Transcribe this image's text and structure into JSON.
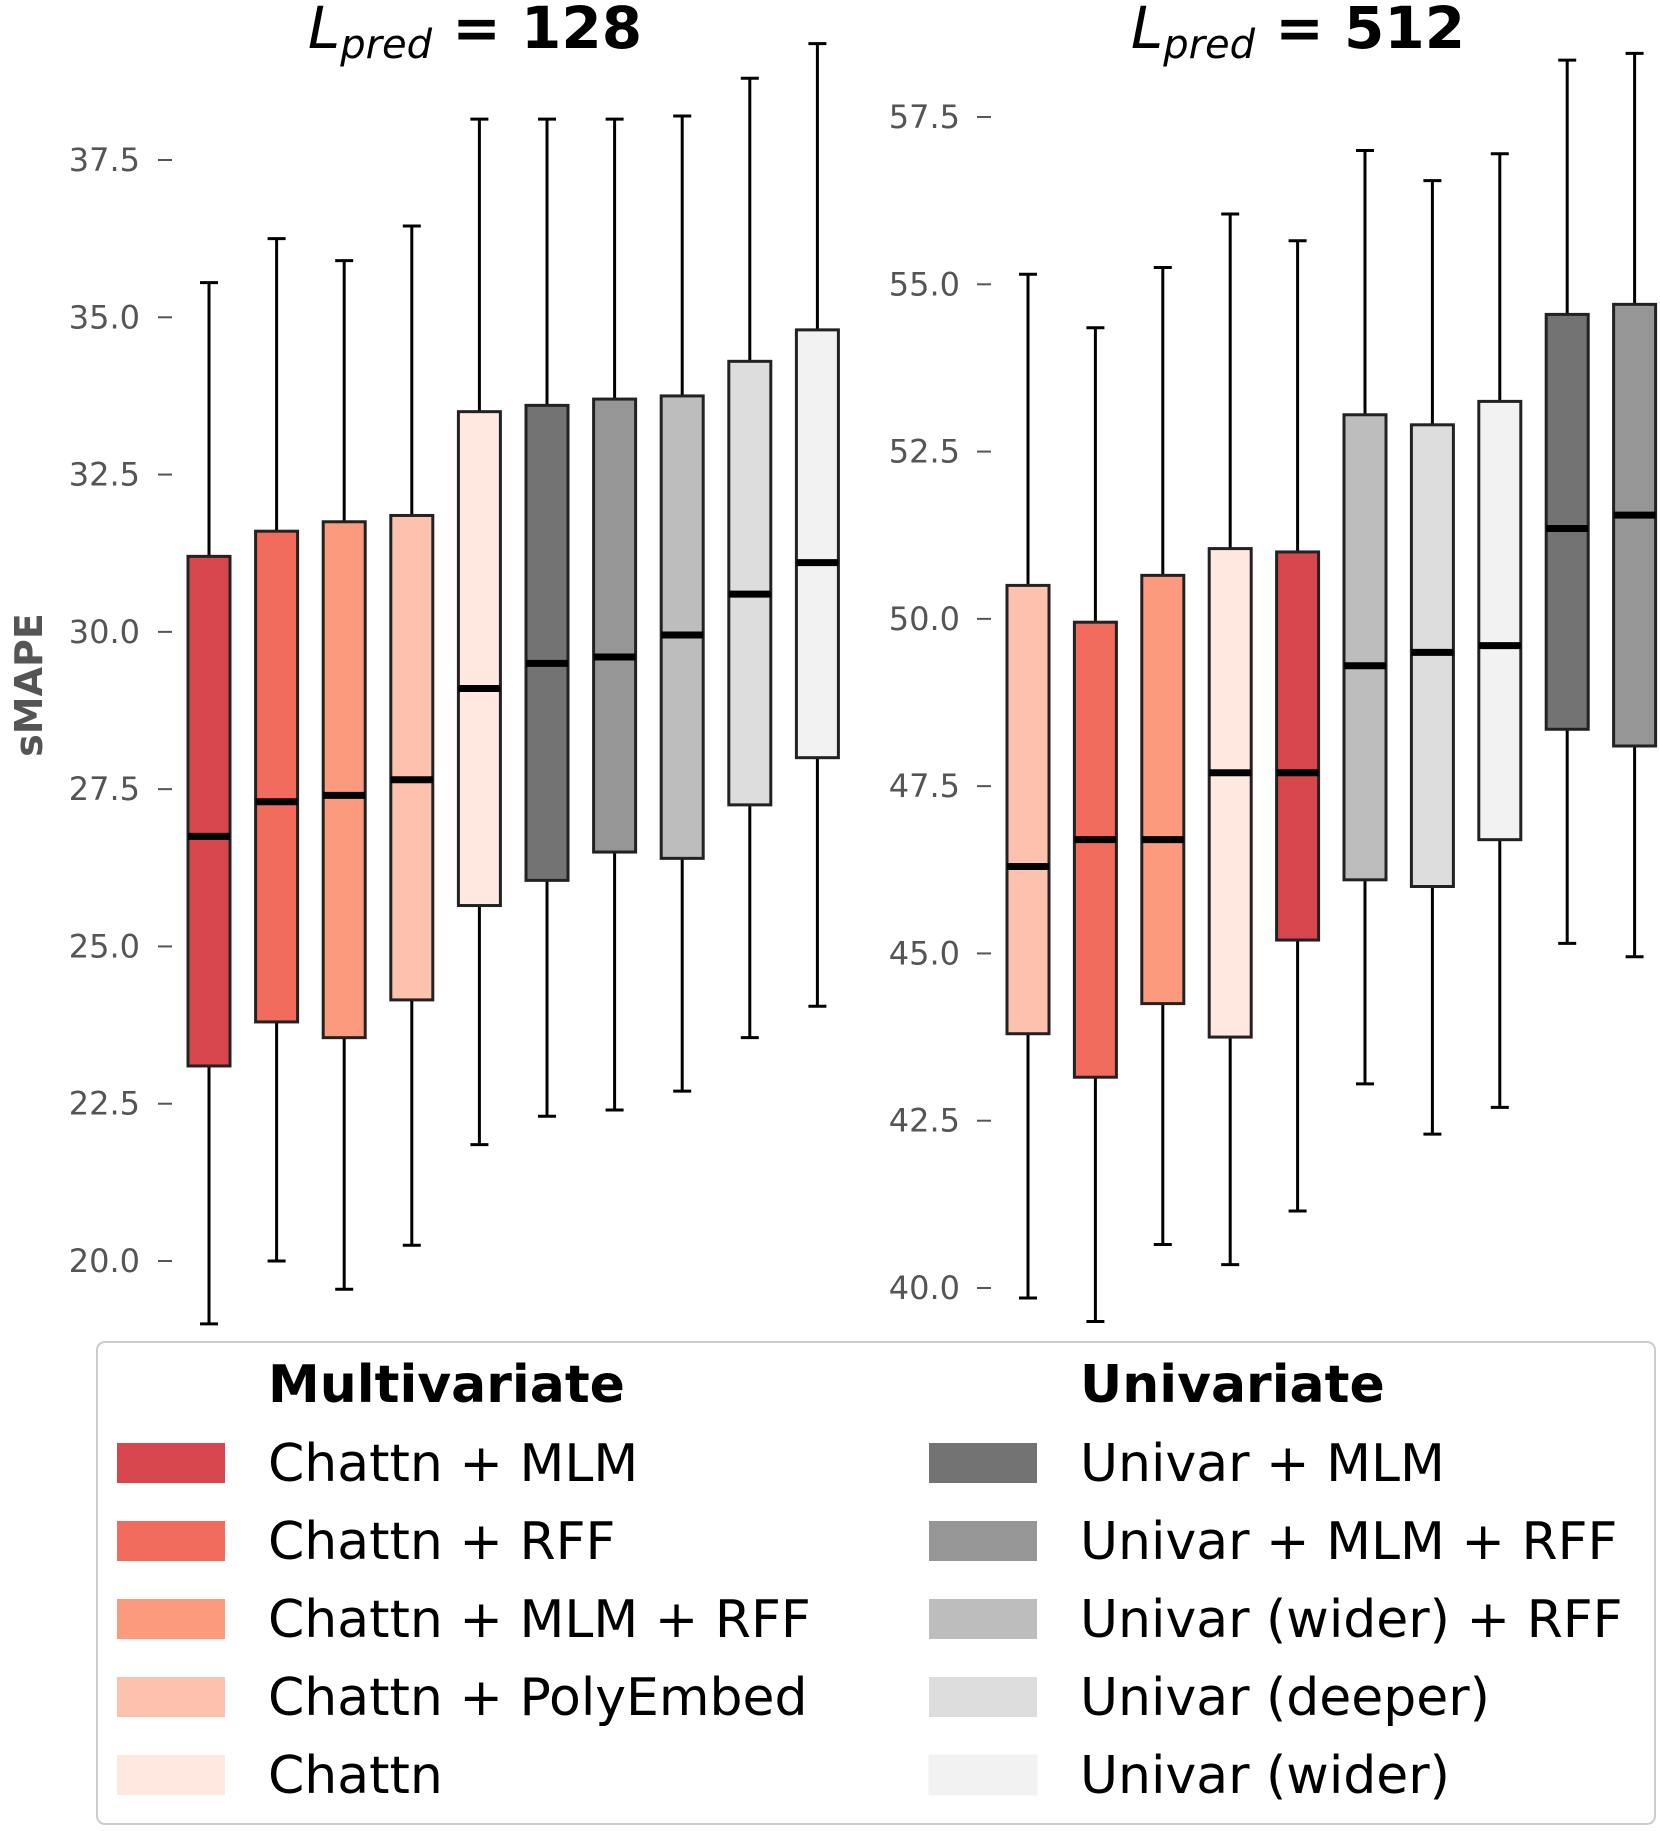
{
  "chart_data": [
    {
      "type": "box",
      "title_prefix": "L",
      "title_sub": "pred",
      "title_suffix": " = 128",
      "ylabel": "sMAPE",
      "ylim": [
        19,
        39.8
      ],
      "yticks": [
        "20.0",
        "22.5",
        "25.0",
        "27.5",
        "30.0",
        "32.5",
        "35.0",
        "37.5"
      ],
      "boxes": [
        {
          "name": "Chattn + MLM",
          "whislo": 19.0,
          "q1": 23.1,
          "med": 26.75,
          "q3": 31.2,
          "whishi": 35.55,
          "color": "#d6464c"
        },
        {
          "name": "Chattn + RFF",
          "whislo": 20.0,
          "q1": 23.8,
          "med": 27.3,
          "q3": 31.6,
          "whishi": 36.25,
          "color": "#f26c5d"
        },
        {
          "name": "Chattn + MLM + RFF",
          "whislo": 19.55,
          "q1": 23.55,
          "med": 27.4,
          "q3": 31.75,
          "whishi": 35.9,
          "color": "#fb9a7c"
        },
        {
          "name": "Chattn + PolyEmbed",
          "whislo": 20.25,
          "q1": 24.15,
          "med": 27.65,
          "q3": 31.85,
          "whishi": 36.45,
          "color": "#fdc2ad"
        },
        {
          "name": "Chattn",
          "whislo": 21.85,
          "q1": 25.65,
          "med": 29.1,
          "q3": 33.5,
          "whishi": 38.15,
          "color": "#fee8e0"
        },
        {
          "name": "Univar + MLM",
          "whislo": 22.3,
          "q1": 26.05,
          "med": 29.5,
          "q3": 33.6,
          "whishi": 38.15,
          "color": "#737373"
        },
        {
          "name": "Univar + MLM + RFF",
          "whislo": 22.4,
          "q1": 26.5,
          "med": 29.6,
          "q3": 33.7,
          "whishi": 38.15,
          "color": "#969696"
        },
        {
          "name": "Univar (wider) + RFF",
          "whislo": 22.7,
          "q1": 26.4,
          "med": 29.95,
          "q3": 33.75,
          "whishi": 38.2,
          "color": "#bdbdbd"
        },
        {
          "name": "Univar (deeper)",
          "whislo": 23.55,
          "q1": 27.25,
          "med": 30.6,
          "q3": 34.3,
          "whishi": 38.8,
          "color": "#dddddd"
        },
        {
          "name": "Univar (wider)",
          "whislo": 24.05,
          "q1": 28.0,
          "med": 31.1,
          "q3": 34.8,
          "whishi": 39.35,
          "color": "#f2f2f2"
        }
      ]
    },
    {
      "type": "box",
      "title_prefix": "L",
      "title_sub": "pred",
      "title_suffix": " = 512",
      "ylabel": "",
      "ylim": [
        39.5,
        58.4
      ],
      "yticks": [
        "40.0",
        "42.5",
        "45.0",
        "47.5",
        "50.0",
        "52.5",
        "55.0",
        "57.5"
      ],
      "boxes": [
        {
          "name": "Chattn + PolyEmbed",
          "whislo": 39.85,
          "q1": 43.8,
          "med": 46.3,
          "q3": 50.5,
          "whishi": 55.15,
          "color": "#fdc2ad"
        },
        {
          "name": "Chattn + RFF",
          "whislo": 39.5,
          "q1": 43.15,
          "med": 46.7,
          "q3": 49.95,
          "whishi": 54.35,
          "color": "#f26c5d"
        },
        {
          "name": "Chattn + MLM + RFF",
          "whislo": 40.65,
          "q1": 44.25,
          "med": 46.7,
          "q3": 50.65,
          "whishi": 55.25,
          "color": "#fb9a7c"
        },
        {
          "name": "Chattn",
          "whislo": 40.35,
          "q1": 43.75,
          "med": 47.7,
          "q3": 51.05,
          "whishi": 56.05,
          "color": "#fee8e0"
        },
        {
          "name": "Chattn + MLM",
          "whislo": 41.15,
          "q1": 45.2,
          "med": 47.7,
          "q3": 51.0,
          "whishi": 55.65,
          "color": "#d6464c"
        },
        {
          "name": "Univar (wider) + RFF",
          "whislo": 43.05,
          "q1": 46.1,
          "med": 49.3,
          "q3": 53.05,
          "whishi": 57.0,
          "color": "#bdbdbd"
        },
        {
          "name": "Univar (deeper)",
          "whislo": 42.3,
          "q1": 46.0,
          "med": 49.5,
          "q3": 52.9,
          "whishi": 56.55,
          "color": "#dddddd"
        },
        {
          "name": "Univar (wider)",
          "whislo": 42.7,
          "q1": 46.7,
          "med": 49.6,
          "q3": 53.25,
          "whishi": 56.95,
          "color": "#f2f2f2"
        },
        {
          "name": "Univar + MLM",
          "whislo": 45.15,
          "q1": 48.35,
          "med": 51.35,
          "q3": 54.55,
          "whishi": 58.35,
          "color": "#737373"
        },
        {
          "name": "Univar + MLM + RFF",
          "whislo": 44.95,
          "q1": 48.1,
          "med": 51.55,
          "q3": 54.7,
          "whishi": 58.45,
          "color": "#969696"
        }
      ]
    }
  ],
  "legend": {
    "multivariate": {
      "heading": "Multivariate",
      "items": [
        {
          "label": "Chattn + MLM",
          "color": "#d6464c"
        },
        {
          "label": "Chattn + RFF",
          "color": "#f26c5d"
        },
        {
          "label": "Chattn + MLM + RFF",
          "color": "#fb9a7c"
        },
        {
          "label": "Chattn + PolyEmbed",
          "color": "#fdc2ad"
        },
        {
          "label": "Chattn",
          "color": "#fee8e0"
        }
      ]
    },
    "univariate": {
      "heading": "Univariate",
      "items": [
        {
          "label": "Univar + MLM",
          "color": "#737373"
        },
        {
          "label": "Univar + MLM + RFF",
          "color": "#969696"
        },
        {
          "label": "Univar (wider) + RFF",
          "color": "#bdbdbd"
        },
        {
          "label": "Univar (deeper)",
          "color": "#dddddd"
        },
        {
          "label": "Univar (wider)",
          "color": "#f2f2f2"
        }
      ]
    }
  }
}
